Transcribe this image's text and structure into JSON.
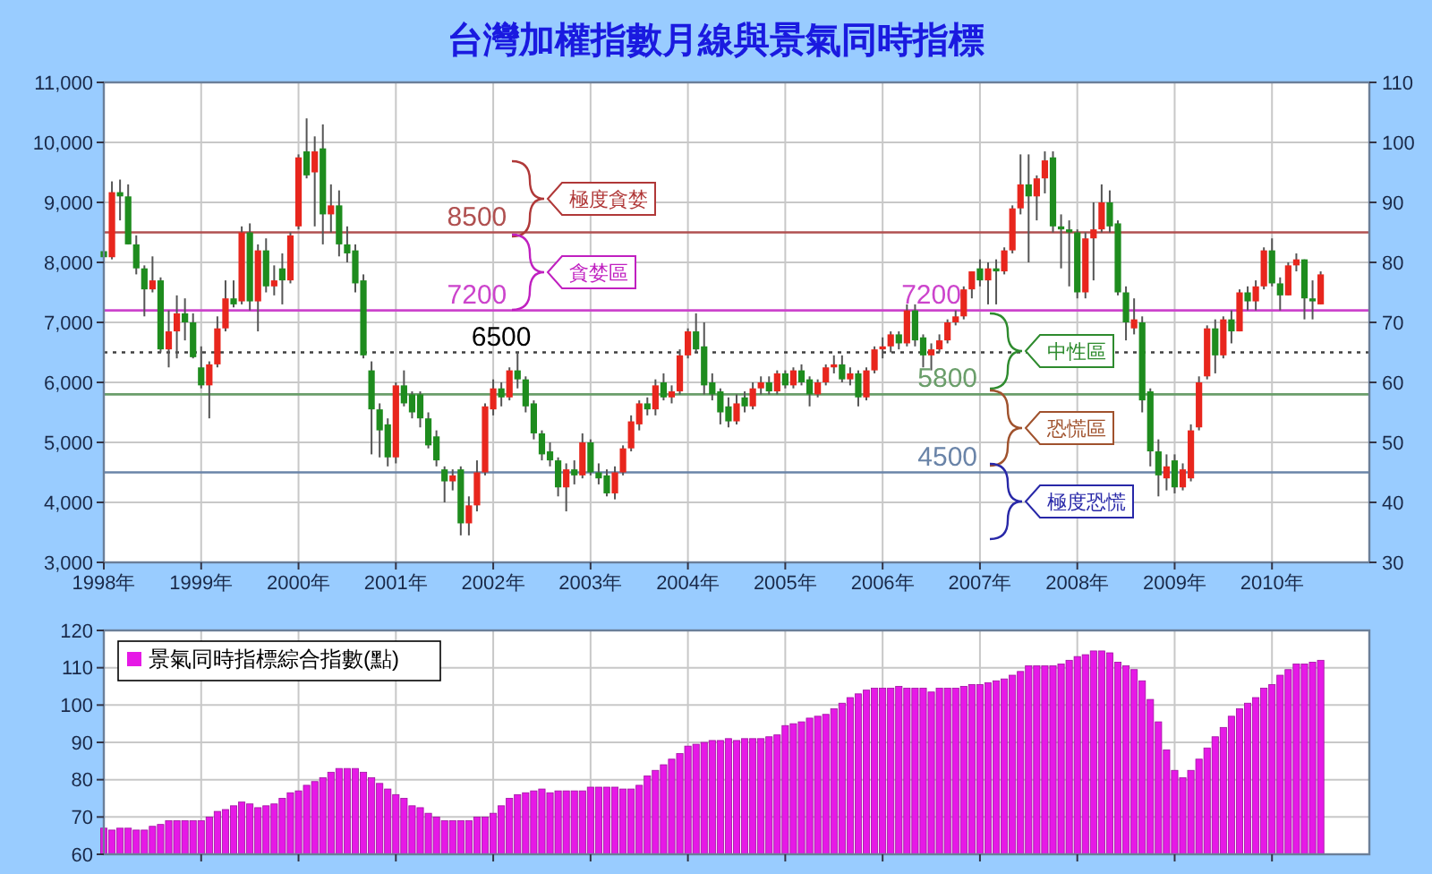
{
  "chart_data": [
    {
      "type": "candlestick",
      "title": "台灣加權指數月線與景氣同時指標",
      "x": [
        "1998-01",
        "1998-02",
        "1998-03",
        "1998-04",
        "1998-05",
        "1998-06",
        "1998-07",
        "1998-08",
        "1998-09",
        "1998-10",
        "1998-11",
        "1998-12",
        "1999-01",
        "1999-02",
        "1999-03",
        "1999-04",
        "1999-05",
        "1999-06",
        "1999-07",
        "1999-08",
        "1999-09",
        "1999-10",
        "1999-11",
        "1999-12",
        "2000-01",
        "2000-02",
        "2000-03",
        "2000-04",
        "2000-05",
        "2000-06",
        "2000-07",
        "2000-08",
        "2000-09",
        "2000-10",
        "2000-11",
        "2000-12",
        "2001-01",
        "2001-02",
        "2001-03",
        "2001-04",
        "2001-05",
        "2001-06",
        "2001-07",
        "2001-08",
        "2001-09",
        "2001-10",
        "2001-11",
        "2001-12",
        "2002-01",
        "2002-02",
        "2002-03",
        "2002-04",
        "2002-05",
        "2002-06",
        "2002-07",
        "2002-08",
        "2002-09",
        "2002-10",
        "2002-11",
        "2002-12",
        "2003-01",
        "2003-02",
        "2003-03",
        "2003-04",
        "2003-05",
        "2003-06",
        "2003-07",
        "2003-08",
        "2003-09",
        "2003-10",
        "2003-11",
        "2003-12",
        "2004-01",
        "2004-02",
        "2004-03",
        "2004-04",
        "2004-05",
        "2004-06",
        "2004-07",
        "2004-08",
        "2004-09",
        "2004-10",
        "2004-11",
        "2004-12",
        "2005-01",
        "2005-02",
        "2005-03",
        "2005-04",
        "2005-05",
        "2005-06",
        "2005-07",
        "2005-08",
        "2005-09",
        "2005-10",
        "2005-11",
        "2005-12",
        "2006-01",
        "2006-02",
        "2006-03",
        "2006-04",
        "2006-05",
        "2006-06",
        "2006-07",
        "2006-08",
        "2006-09",
        "2006-10",
        "2006-11",
        "2006-12",
        "2007-01",
        "2007-02",
        "2007-03",
        "2007-04",
        "2007-05",
        "2007-06",
        "2007-07",
        "2007-08",
        "2007-09",
        "2007-10",
        "2007-11",
        "2007-12",
        "2008-01",
        "2008-02",
        "2008-03",
        "2008-04",
        "2008-05",
        "2008-06",
        "2008-07",
        "2008-08",
        "2008-09",
        "2008-10",
        "2008-11",
        "2008-12",
        "2009-01",
        "2009-02",
        "2009-03",
        "2009-04",
        "2009-05",
        "2009-06",
        "2009-07",
        "2009-08",
        "2009-09",
        "2009-10",
        "2009-11",
        "2009-12",
        "2010-01",
        "2010-02",
        "2010-03",
        "2010-04",
        "2010-05",
        "2010-06",
        "2010-07"
      ],
      "ohlc": [
        [
          8187,
          8250,
          7400,
          8086
        ],
        [
          8086,
          9350,
          8050,
          9170
        ],
        [
          9170,
          9380,
          8700,
          9100
        ],
        [
          9100,
          9300,
          8300,
          8300
        ],
        [
          8300,
          8450,
          7800,
          7900
        ],
        [
          7900,
          7950,
          7100,
          7550
        ],
        [
          7550,
          8100,
          7500,
          7700
        ],
        [
          7700,
          7750,
          6500,
          6550
        ],
        [
          6550,
          7200,
          6250,
          6850
        ],
        [
          6850,
          7450,
          6400,
          7150
        ],
        [
          7150,
          7400,
          6700,
          7000
        ],
        [
          7000,
          7150,
          6400,
          6420
        ],
        [
          6250,
          6600,
          5900,
          5950
        ],
        [
          5950,
          6350,
          5400,
          6300
        ],
        [
          6300,
          7100,
          6250,
          6900
        ],
        [
          6900,
          7700,
          6850,
          7400
        ],
        [
          7400,
          7700,
          7250,
          7300
        ],
        [
          7350,
          8600,
          7300,
          8500
        ],
        [
          8500,
          8650,
          7200,
          7350
        ],
        [
          7350,
          8300,
          6850,
          8200
        ],
        [
          8200,
          8400,
          7500,
          7600
        ],
        [
          7600,
          7950,
          7450,
          7700
        ],
        [
          7900,
          8150,
          7300,
          7700
        ],
        [
          7700,
          8500,
          7650,
          8450
        ],
        [
          8600,
          9800,
          8550,
          9750
        ],
        [
          9850,
          10400,
          9400,
          9450
        ],
        [
          9500,
          10100,
          8600,
          9850
        ],
        [
          9900,
          10300,
          8300,
          8800
        ],
        [
          8800,
          9300,
          8500,
          8950
        ],
        [
          8950,
          9200,
          8100,
          8300
        ],
        [
          8300,
          8600,
          8000,
          8150
        ],
        [
          8200,
          8300,
          7500,
          7650
        ],
        [
          7700,
          7800,
          6400,
          6450
        ],
        [
          6200,
          6350,
          4800,
          5550
        ],
        [
          5550,
          5650,
          4750,
          5200
        ],
        [
          5300,
          5400,
          4600,
          4750
        ],
        [
          4750,
          6000,
          4650,
          5950
        ],
        [
          5950,
          6200,
          5600,
          5650
        ],
        [
          5800,
          5850,
          5400,
          5500
        ],
        [
          5800,
          5850,
          5250,
          5400
        ],
        [
          5400,
          5500,
          4900,
          4950
        ],
        [
          5100,
          5200,
          4600,
          4700
        ],
        [
          4550,
          4600,
          4000,
          4350
        ],
        [
          4350,
          4550,
          4200,
          4450
        ],
        [
          4550,
          4600,
          3450,
          3650
        ],
        [
          3650,
          4100,
          3450,
          3950
        ],
        [
          3950,
          4700,
          3850,
          4500
        ],
        [
          4500,
          5650,
          4450,
          5600
        ],
        [
          5550,
          6050,
          5450,
          5900
        ],
        [
          5900,
          6000,
          5600,
          5750
        ],
        [
          5750,
          6250,
          5700,
          6200
        ],
        [
          6200,
          6500,
          5900,
          6050
        ],
        [
          6050,
          6100,
          5500,
          5600
        ],
        [
          5650,
          5700,
          5050,
          5150
        ],
        [
          5150,
          5200,
          4700,
          4800
        ],
        [
          4850,
          5000,
          4600,
          4700
        ],
        [
          4700,
          4750,
          4100,
          4250
        ],
        [
          4250,
          4650,
          3850,
          4550
        ],
        [
          4550,
          4700,
          4300,
          4450
        ],
        [
          4450,
          5150,
          4400,
          5000
        ],
        [
          5000,
          5050,
          4450,
          4500
        ],
        [
          4500,
          4650,
          4300,
          4400
        ],
        [
          4450,
          4550,
          4100,
          4150
        ],
        [
          4150,
          4600,
          4050,
          4500
        ],
        [
          4500,
          4950,
          4450,
          4900
        ],
        [
          4900,
          5450,
          4850,
          5350
        ],
        [
          5300,
          5700,
          5200,
          5650
        ],
        [
          5650,
          5750,
          5450,
          5550
        ],
        [
          5550,
          6050,
          5450,
          5950
        ],
        [
          6000,
          6150,
          5700,
          5750
        ],
        [
          5750,
          5950,
          5650,
          5850
        ],
        [
          5850,
          6550,
          5800,
          6450
        ],
        [
          6450,
          6900,
          6400,
          6850
        ],
        [
          6850,
          7150,
          6500,
          6550
        ],
        [
          6600,
          7000,
          5800,
          5950
        ],
        [
          6000,
          6150,
          5700,
          5800
        ],
        [
          5850,
          5900,
          5300,
          5500
        ],
        [
          5600,
          5750,
          5250,
          5350
        ],
        [
          5350,
          5800,
          5300,
          5650
        ],
        [
          5750,
          5850,
          5500,
          5600
        ],
        [
          5600,
          6000,
          5550,
          5900
        ],
        [
          5900,
          6100,
          5800,
          6000
        ],
        [
          6000,
          6100,
          5800,
          5850
        ],
        [
          5850,
          6200,
          5800,
          6150
        ],
        [
          6150,
          6200,
          5900,
          5950
        ],
        [
          5950,
          6250,
          5900,
          6200
        ],
        [
          6200,
          6300,
          5950,
          6000
        ],
        [
          6050,
          6100,
          5600,
          5800
        ],
        [
          5800,
          6050,
          5750,
          6000
        ],
        [
          6000,
          6300,
          5950,
          6250
        ],
        [
          6250,
          6450,
          6150,
          6300
        ],
        [
          6300,
          6450,
          6000,
          6050
        ],
        [
          6050,
          6250,
          5950,
          6150
        ],
        [
          6150,
          6200,
          5600,
          5750
        ],
        [
          5750,
          6250,
          5700,
          6200
        ],
        [
          6200,
          6600,
          6150,
          6550
        ],
        [
          6550,
          6750,
          6400,
          6600
        ],
        [
          6600,
          6850,
          6500,
          6800
        ],
        [
          6800,
          6850,
          6550,
          6650
        ],
        [
          6650,
          7300,
          6600,
          7200
        ],
        [
          7200,
          7300,
          6600,
          6700
        ],
        [
          6750,
          6800,
          6250,
          6450
        ],
        [
          6450,
          6650,
          6200,
          6550
        ],
        [
          6550,
          6800,
          6500,
          6700
        ],
        [
          6700,
          7050,
          6650,
          7000
        ],
        [
          7000,
          7200,
          6950,
          7100
        ],
        [
          7100,
          7600,
          7050,
          7550
        ],
        [
          7550,
          7850,
          7400,
          7850
        ],
        [
          7900,
          8050,
          7600,
          7700
        ],
        [
          7700,
          8000,
          7300,
          7900
        ],
        [
          7900,
          8050,
          7300,
          7850
        ],
        [
          7850,
          8250,
          7800,
          8200
        ],
        [
          8200,
          8950,
          8150,
          8900
        ],
        [
          8900,
          9800,
          8800,
          9300
        ],
        [
          9300,
          9800,
          8000,
          9100
        ],
        [
          9100,
          9450,
          8700,
          9400
        ],
        [
          9400,
          9850,
          9150,
          9700
        ],
        [
          9750,
          9850,
          8500,
          8600
        ],
        [
          8600,
          8800,
          7900,
          8550
        ],
        [
          8550,
          8700,
          7600,
          8500
        ],
        [
          8500,
          8550,
          7400,
          7500
        ],
        [
          7500,
          8500,
          7400,
          8400
        ],
        [
          8400,
          9000,
          7700,
          8550
        ],
        [
          8550,
          9300,
          8500,
          9000
        ],
        [
          9000,
          9200,
          8500,
          8600
        ],
        [
          8650,
          8700,
          7450,
          7500
        ],
        [
          7500,
          7600,
          6700,
          7000
        ],
        [
          6900,
          7400,
          6800,
          7050
        ],
        [
          7000,
          7100,
          5500,
          5700
        ],
        [
          5850,
          5900,
          4600,
          4850
        ],
        [
          4850,
          5050,
          4100,
          4450
        ],
        [
          4400,
          4800,
          4200,
          4600
        ],
        [
          4700,
          4800,
          4150,
          4250
        ],
        [
          4250,
          4650,
          4200,
          4550
        ],
        [
          4400,
          5300,
          4350,
          5200
        ],
        [
          5250,
          6100,
          5200,
          6000
        ],
        [
          6100,
          6950,
          6050,
          6900
        ],
        [
          6900,
          7050,
          6150,
          6450
        ],
        [
          6450,
          7100,
          6400,
          7050
        ],
        [
          7050,
          7200,
          6650,
          6850
        ],
        [
          6850,
          7550,
          6850,
          7500
        ],
        [
          7500,
          7600,
          7200,
          7350
        ],
        [
          7350,
          7700,
          7200,
          7600
        ],
        [
          7600,
          8250,
          7550,
          8200
        ],
        [
          8200,
          8400,
          7600,
          7650
        ],
        [
          7650,
          7750,
          7200,
          7450
        ],
        [
          7450,
          8000,
          7450,
          7950
        ],
        [
          7950,
          8150,
          7850,
          8050
        ],
        [
          8050,
          8050,
          7050,
          7400
        ],
        [
          7400,
          7700,
          7050,
          7350
        ],
        [
          7300,
          7850,
          7300,
          7800
        ]
      ],
      "colors": [
        "#1e8c1e",
        "#e8261d",
        "#1e8c1e",
        "#1e8c1e",
        "#1e8c1e",
        "#1e8c1e",
        "#e8261d",
        "#1e8c1e",
        "#e8261d",
        "#e8261d",
        "#1e8c1e",
        "#1e8c1e",
        "#1e8c1e",
        "#e8261d",
        "#e8261d",
        "#e8261d",
        "#1e8c1e",
        "#e8261d",
        "#1e8c1e",
        "#e8261d",
        "#1e8c1e",
        "#e8261d",
        "#1e8c1e",
        "#e8261d",
        "#e8261d",
        "#1e8c1e",
        "#e8261d",
        "#1e8c1e",
        "#e8261d",
        "#1e8c1e",
        "#1e8c1e",
        "#1e8c1e",
        "#1e8c1e",
        "#1e8c1e",
        "#1e8c1e",
        "#1e8c1e",
        "#e8261d",
        "#1e8c1e",
        "#1e8c1e",
        "#1e8c1e",
        "#1e8c1e",
        "#1e8c1e",
        "#1e8c1e",
        "#e8261d",
        "#1e8c1e",
        "#e8261d",
        "#e8261d",
        "#e8261d",
        "#e8261d",
        "#1e8c1e",
        "#e8261d",
        "#1e8c1e",
        "#1e8c1e",
        "#1e8c1e",
        "#1e8c1e",
        "#1e8c1e",
        "#1e8c1e",
        "#e8261d",
        "#1e8c1e",
        "#e8261d",
        "#1e8c1e",
        "#1e8c1e",
        "#1e8c1e",
        "#e8261d",
        "#e8261d",
        "#e8261d",
        "#e8261d",
        "#1e8c1e",
        "#e8261d",
        "#1e8c1e",
        "#e8261d",
        "#e8261d",
        "#e8261d",
        "#1e8c1e",
        "#1e8c1e",
        "#1e8c1e",
        "#1e8c1e",
        "#1e8c1e",
        "#e8261d",
        "#1e8c1e",
        "#e8261d",
        "#e8261d",
        "#1e8c1e",
        "#e8261d",
        "#1e8c1e",
        "#e8261d",
        "#1e8c1e",
        "#1e8c1e",
        "#e8261d",
        "#e8261d",
        "#e8261d",
        "#1e8c1e",
        "#e8261d",
        "#1e8c1e",
        "#e8261d",
        "#e8261d",
        "#e8261d",
        "#e8261d",
        "#1e8c1e",
        "#e8261d",
        "#1e8c1e",
        "#1e8c1e",
        "#e8261d",
        "#e8261d",
        "#e8261d",
        "#e8261d",
        "#e8261d",
        "#e8261d",
        "#1e8c1e",
        "#e8261d",
        "#1e8c1e",
        "#e8261d",
        "#e8261d",
        "#e8261d",
        "#1e8c1e",
        "#e8261d",
        "#e8261d",
        "#1e8c1e",
        "#1e8c1e",
        "#1e8c1e",
        "#1e8c1e",
        "#e8261d",
        "#e8261d",
        "#e8261d",
        "#1e8c1e",
        "#1e8c1e",
        "#1e8c1e",
        "#e8261d",
        "#1e8c1e",
        "#1e8c1e",
        "#1e8c1e",
        "#e8261d",
        "#1e8c1e",
        "#e8261d",
        "#e8261d",
        "#e8261d",
        "#e8261d",
        "#1e8c1e",
        "#e8261d",
        "#1e8c1e",
        "#e8261d",
        "#1e8c1e",
        "#e8261d",
        "#e8261d",
        "#1e8c1e",
        "#1e8c1e",
        "#e8261d",
        "#e8261d",
        "#1e8c1e",
        "#1e8c1e",
        "#e8261d"
      ],
      "xlim": [
        "1998",
        "2011"
      ],
      "xticks": [
        {
          "value": "1998",
          "label": "1998年"
        },
        {
          "value": "1999",
          "label": "1999年"
        },
        {
          "value": "2000",
          "label": "2000年"
        },
        {
          "value": "2001",
          "label": "2001年"
        },
        {
          "value": "2002",
          "label": "2002年"
        },
        {
          "value": "2003",
          "label": "2003年"
        },
        {
          "value": "2004",
          "label": "2004年"
        },
        {
          "value": "2005",
          "label": "2005年"
        },
        {
          "value": "2006",
          "label": "2006年"
        },
        {
          "value": "2007",
          "label": "2007年"
        },
        {
          "value": "2008",
          "label": "2008年"
        },
        {
          "value": "2009",
          "label": "2009年"
        },
        {
          "value": "2010",
          "label": "2010年"
        }
      ],
      "ylim": [
        3000,
        11000
      ],
      "yticks": [
        {
          "value": 3000,
          "label": "3,000"
        },
        {
          "value": 4000,
          "label": "4,000"
        },
        {
          "value": 5000,
          "label": "5,000"
        },
        {
          "value": 6000,
          "label": "6,000"
        },
        {
          "value": 7000,
          "label": "7,000"
        },
        {
          "value": 8000,
          "label": "8,000"
        },
        {
          "value": 9000,
          "label": "9,000"
        },
        {
          "value": 10000,
          "label": "10,000"
        },
        {
          "value": 11000,
          "label": "11,000"
        }
      ],
      "y2lim": [
        30,
        110
      ],
      "y2ticks": [
        30,
        40,
        50,
        60,
        70,
        80,
        90,
        100,
        110
      ],
      "grid": true,
      "ref_lines": [
        {
          "axis": "y",
          "value": 8500,
          "color": "#b05050"
        },
        {
          "axis": "y",
          "value": 7200,
          "color": "#cc44cc"
        },
        {
          "axis": "y",
          "value": 6500,
          "color": "#404040",
          "line_style": "dotted"
        },
        {
          "axis": "y",
          "value": 5800,
          "color": "#6a9e6a"
        },
        {
          "axis": "y",
          "value": 4500,
          "color": "#6a84a8"
        }
      ],
      "annotations": [
        {
          "text": "8500",
          "x": "2001-11",
          "y": 8500
        },
        {
          "text": "7200",
          "x": "2001-11",
          "y": 7200
        },
        {
          "text": "6500",
          "x": "2002-02",
          "y": 6500
        },
        {
          "text": "7200",
          "x": "2006-07",
          "y": 7200
        },
        {
          "text": "5800",
          "x": "2006-09",
          "y": 5800
        },
        {
          "text": "4500",
          "x": "2006-09",
          "y": 4500
        },
        "極度貪婪",
        "貪婪區",
        "中性區",
        "恐慌區",
        "極度恐慌"
      ]
    },
    {
      "type": "bar",
      "x": [
        "1998-01",
        "1998-02",
        "1998-03",
        "1998-04",
        "1998-05",
        "1998-06",
        "1998-07",
        "1998-08",
        "1998-09",
        "1998-10",
        "1998-11",
        "1998-12",
        "1999-01",
        "1999-02",
        "1999-03",
        "1999-04",
        "1999-05",
        "1999-06",
        "1999-07",
        "1999-08",
        "1999-09",
        "1999-10",
        "1999-11",
        "1999-12",
        "2000-01",
        "2000-02",
        "2000-03",
        "2000-04",
        "2000-05",
        "2000-06",
        "2000-07",
        "2000-08",
        "2000-09",
        "2000-10",
        "2000-11",
        "2000-12",
        "2001-01",
        "2001-02",
        "2001-03",
        "2001-04",
        "2001-05",
        "2001-06",
        "2001-07",
        "2001-08",
        "2001-09",
        "2001-10",
        "2001-11",
        "2001-12",
        "2002-01",
        "2002-02",
        "2002-03",
        "2002-04",
        "2002-05",
        "2002-06",
        "2002-07",
        "2002-08",
        "2002-09",
        "2002-10",
        "2002-11",
        "2002-12",
        "2003-01",
        "2003-02",
        "2003-03",
        "2003-04",
        "2003-05",
        "2003-06",
        "2003-07",
        "2003-08",
        "2003-09",
        "2003-10",
        "2003-11",
        "2003-12",
        "2004-01",
        "2004-02",
        "2004-03",
        "2004-04",
        "2004-05",
        "2004-06",
        "2004-07",
        "2004-08",
        "2004-09",
        "2004-10",
        "2004-11",
        "2004-12",
        "2005-01",
        "2005-02",
        "2005-03",
        "2005-04",
        "2005-05",
        "2005-06",
        "2005-07",
        "2005-08",
        "2005-09",
        "2005-10",
        "2005-11",
        "2005-12",
        "2006-01",
        "2006-02",
        "2006-03",
        "2006-04",
        "2006-05",
        "2006-06",
        "2006-07",
        "2006-08",
        "2006-09",
        "2006-10",
        "2006-11",
        "2006-12",
        "2007-01",
        "2007-02",
        "2007-03",
        "2007-04",
        "2007-05",
        "2007-06",
        "2007-07",
        "2007-08",
        "2007-09",
        "2007-10",
        "2007-11",
        "2007-12",
        "2008-01",
        "2008-02",
        "2008-03",
        "2008-04",
        "2008-05",
        "2008-06",
        "2008-07",
        "2008-08",
        "2008-09",
        "2008-10",
        "2008-11",
        "2008-12",
        "2009-01",
        "2009-02",
        "2009-03",
        "2009-04",
        "2009-05",
        "2009-06",
        "2009-07",
        "2009-08",
        "2009-09",
        "2009-10",
        "2009-11",
        "2009-12",
        "2010-01",
        "2010-02",
        "2010-03",
        "2010-04",
        "2010-05",
        "2010-06",
        "2010-07"
      ],
      "series": [
        {
          "name": "景氣同時指標綜合指數(點)",
          "color": "#e619e6",
          "values": [
            67,
            66.5,
            67,
            67,
            66.5,
            66.5,
            67.5,
            68,
            69,
            69,
            69,
            69,
            69,
            70,
            71.5,
            72,
            73,
            74,
            73.5,
            72.5,
            73,
            73.5,
            75,
            76.5,
            77,
            78.5,
            79.5,
            80.5,
            82,
            83,
            83,
            83,
            82,
            80.5,
            79,
            77.5,
            76,
            75,
            73,
            72.5,
            71,
            70,
            69,
            69,
            69,
            69,
            70,
            70,
            71,
            73,
            75,
            76,
            76.5,
            77,
            77.5,
            76.5,
            77,
            77,
            77,
            77,
            78,
            78,
            78,
            78,
            77.5,
            77.5,
            78.5,
            81,
            82.5,
            84,
            85.5,
            87,
            89,
            89.5,
            90,
            90.5,
            90.5,
            91,
            90.5,
            91,
            91,
            91,
            91.5,
            92,
            94.5,
            95,
            95.5,
            96.5,
            97,
            97.5,
            99,
            100.5,
            102,
            103,
            104,
            104.5,
            104.5,
            104.5,
            105,
            104.5,
            104.5,
            104.5,
            103.5,
            104.5,
            104.5,
            104.5,
            105,
            105.5,
            105.5,
            106,
            106.5,
            107,
            108,
            109,
            110.5,
            110.5,
            110.5,
            110.5,
            111,
            112,
            113,
            113.5,
            114.5,
            114.5,
            114,
            111.5,
            110.5,
            109.5,
            106.5,
            101.5,
            95.5,
            88,
            82.5,
            80.5,
            82.5,
            85.5,
            88.5,
            91.5,
            94,
            97,
            99,
            100.5,
            102,
            104.5,
            105.5,
            108,
            109.5,
            111,
            111,
            111.5,
            112
          ]
        }
      ],
      "xlim": [
        "1998",
        "2011"
      ],
      "xticks": [
        {
          "value": "1999",
          "label": null
        },
        {
          "value": "2000",
          "label": null
        },
        {
          "value": "2001",
          "label": null
        },
        {
          "value": "2002",
          "label": null
        },
        {
          "value": "2003",
          "label": null
        },
        {
          "value": "2004",
          "label": null
        },
        {
          "value": "2005",
          "label": null
        },
        {
          "value": "2006",
          "label": null
        },
        {
          "value": "2007",
          "label": null
        },
        {
          "value": "2008",
          "label": null
        },
        {
          "value": "2009",
          "label": null
        },
        {
          "value": "2010",
          "label": null
        }
      ],
      "ylim": [
        60,
        120
      ],
      "yticks": [
        60,
        70,
        80,
        90,
        100,
        110,
        120
      ],
      "tick_labels": "y",
      "grid": true,
      "legend": "top left"
    }
  ]
}
